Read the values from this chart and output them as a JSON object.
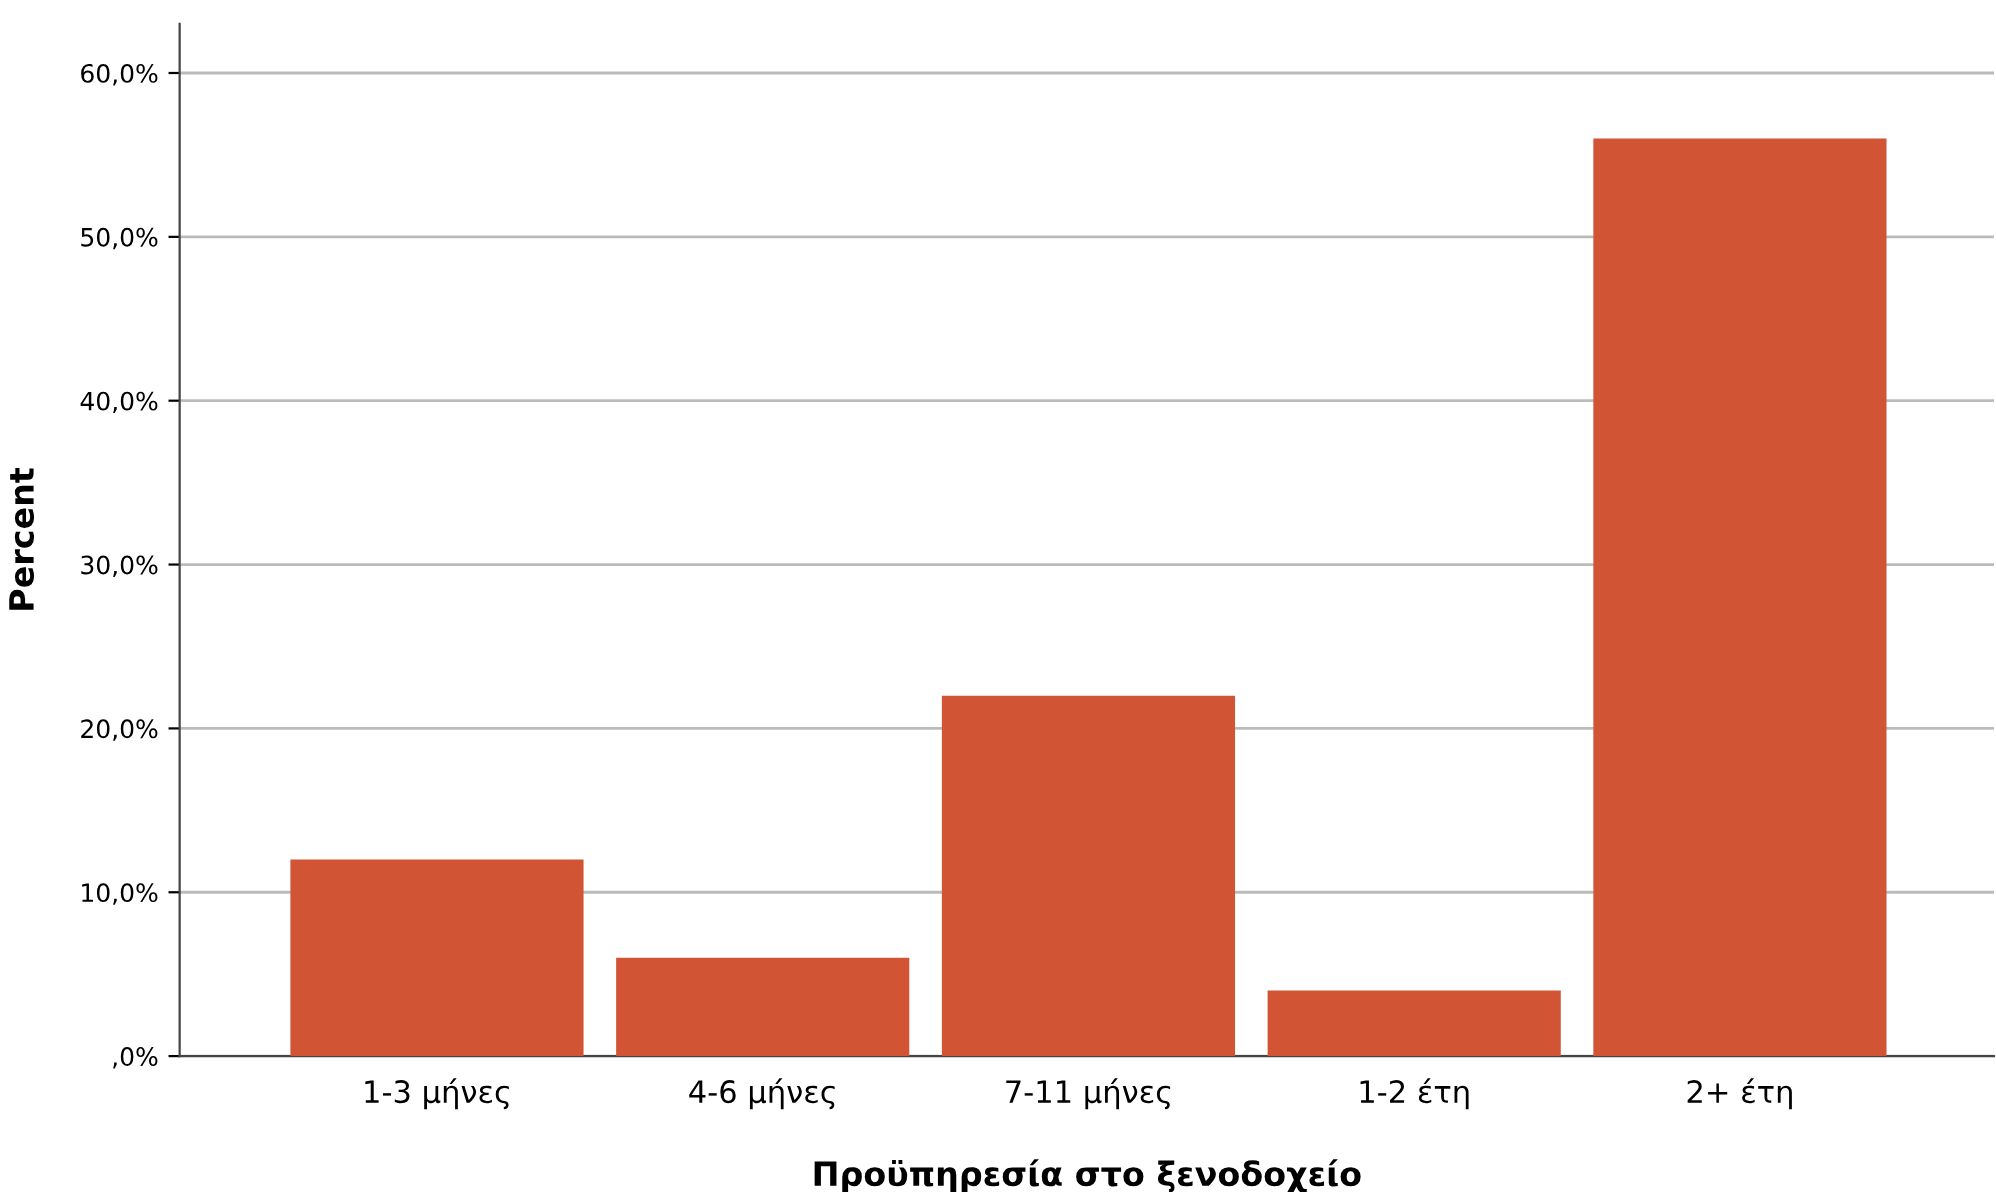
{
  "chart_data": {
    "type": "bar",
    "xlabel": "Προϋπηρεσία στο ξενοδοχείο",
    "ylabel": "Percent",
    "categories": [
      "1-3 μήνες",
      "4-6 μήνες",
      "7-11 μήνες",
      "1-2 έτη",
      "2+ έτη"
    ],
    "values": [
      12,
      6,
      22,
      4,
      56
    ],
    "color": "#d15434",
    "ylim": [
      0,
      63
    ],
    "yticks": [
      {
        "value": 0,
        "label": ",0%"
      },
      {
        "value": 10,
        "label": "10,0%"
      },
      {
        "value": 20,
        "label": "20,0%"
      },
      {
        "value": 30,
        "label": "30,0%"
      },
      {
        "value": 40,
        "label": "40,0%"
      },
      {
        "value": 50,
        "label": "50,0%"
      },
      {
        "value": 60,
        "label": "60,0%"
      }
    ],
    "grid": "y",
    "legend": false
  }
}
